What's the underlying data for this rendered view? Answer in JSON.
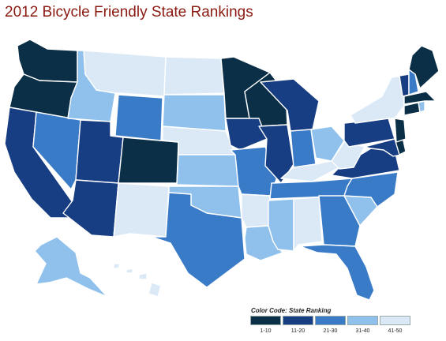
{
  "title": "2012 Bicycle Friendly State Rankings",
  "legend": {
    "title": "Color Code: State Ranking",
    "items": [
      {
        "label": "1-10",
        "color": "#0b2f47"
      },
      {
        "label": "11-20",
        "color": "#173d82"
      },
      {
        "label": "21-30",
        "color": "#3a7bc8"
      },
      {
        "label": "31-40",
        "color": "#8fc1ec"
      },
      {
        "label": "41-50",
        "color": "#dbe9f7"
      }
    ]
  },
  "state_tiers": {
    "WA": "1-10",
    "OR": "1-10",
    "MN": "1-10",
    "WI": "1-10",
    "CO": "1-10",
    "ME": "1-10",
    "DE": "1-10",
    "NJ": "1-10",
    "MA": "1-10",
    "CT": "1-10",
    "CA": "11-20",
    "UT": "11-20",
    "AZ": "11-20",
    "IA": "11-20",
    "IL": "11-20",
    "MI": "11-20",
    "PA": "11-20",
    "MD": "11-20",
    "VA": "11-20",
    "VT": "11-20",
    "NV": "21-30",
    "WY": "21-30",
    "MO": "21-30",
    "IN": "21-30",
    "TN": "21-30",
    "NC": "21-30",
    "GA": "21-30",
    "FL": "21-30",
    "TX": "21-30",
    "NH": "21-30",
    "ID": "31-40",
    "SD": "31-40",
    "KS": "31-40",
    "OK": "31-40",
    "OH": "31-40",
    "SC": "31-40",
    "MS": "31-40",
    "LA": "31-40",
    "AK": "31-40",
    "RI": "31-40",
    "MT": "41-50",
    "ND": "41-50",
    "NE": "41-50",
    "NM": "41-50",
    "AR": "41-50",
    "AL": "41-50",
    "KY": "41-50",
    "WV": "41-50",
    "NY": "41-50",
    "HI": "41-50"
  }
}
